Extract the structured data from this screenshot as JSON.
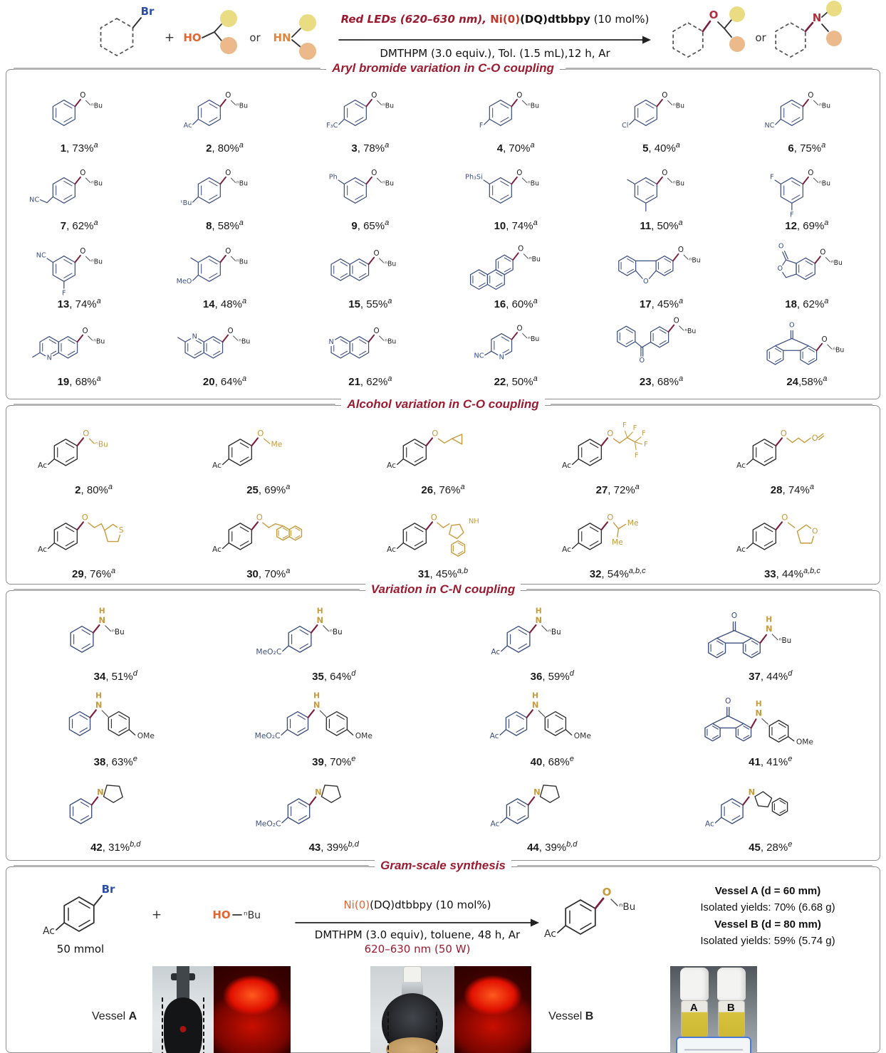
{
  "colors": {
    "blue": "#3d5080",
    "dark": "#2f2f2f",
    "maroon": "#7c1f3d",
    "gold": "#c79b3b",
    "hetero": "#2f4b8f",
    "red": "#b03040",
    "title": "#9b1b30",
    "orange": "#e2662f",
    "hnOrange": "#e0873c",
    "blob_yellow": "#e9dc82",
    "blob_orange": "#ecb98a"
  },
  "glyphs": {
    "o": "O",
    "n": "N",
    "h": "H",
    "s": "S",
    "nh": "NH",
    "nBu": "ⁿBu",
    "me": "Me",
    "f": "F",
    "ome": "OMe",
    "ac": "Ac",
    "nc": "NC",
    "br": "Br",
    "plus": "+",
    "or": "or",
    "ho": "HO",
    "hn": "HN"
  },
  "scheme": {
    "red_leds": "Red LEDs (620–630 nm), ",
    "ni": "Ni(0)",
    "dq": "(DQ)dtbbpy",
    "molpct": " (10 mol%)",
    "line2": "DMTHPM (3.0 equiv.), Tol. (1.5 mL),12 h, Ar"
  },
  "sections": [
    {
      "title": "Aryl bromide variation in C-O coupling",
      "compounds": [
        {
          "id": "1",
          "yield": "73%",
          "sup": "a",
          "type": "aryl",
          "subs": []
        },
        {
          "id": "2",
          "yield": "80%",
          "sup": "a",
          "type": "aryl",
          "subs": [
            {
              "t": "Ac",
              "pos": "bl"
            }
          ]
        },
        {
          "id": "3",
          "yield": "78%",
          "sup": "a",
          "type": "aryl",
          "subs": [
            {
              "t": "F₃C",
              "pos": "bl"
            }
          ]
        },
        {
          "id": "4",
          "yield": "70%",
          "sup": "a",
          "type": "aryl",
          "subs": [
            {
              "t": "F",
              "pos": "bl"
            }
          ]
        },
        {
          "id": "5",
          "yield": "40%",
          "sup": "a",
          "type": "aryl",
          "subs": [
            {
              "t": "Cl",
              "pos": "bl"
            }
          ]
        },
        {
          "id": "6",
          "yield": "75%",
          "sup": "a",
          "type": "aryl",
          "subs": [
            {
              "t": "NC",
              "pos": "bl"
            }
          ]
        },
        {
          "id": "7",
          "yield": "62%",
          "sup": "a",
          "type": "aryl",
          "subs": [
            {
              "t": "NC",
              "pos": "bl2"
            }
          ]
        },
        {
          "id": "8",
          "yield": "58%",
          "sup": "a",
          "type": "aryl",
          "subs": [
            {
              "t": "ᵗBu",
              "pos": "bl"
            }
          ]
        },
        {
          "id": "9",
          "yield": "65%",
          "sup": "a",
          "type": "aryl",
          "subs": [
            {
              "t": "Ph",
              "pos": "l"
            }
          ]
        },
        {
          "id": "10",
          "yield": "74%",
          "sup": "a",
          "type": "aryl",
          "subs": [
            {
              "t": "Ph₃Si",
              "pos": "l"
            }
          ]
        },
        {
          "id": "11",
          "yield": "50%",
          "sup": "a",
          "type": "aryl",
          "subs": [
            {
              "t": "",
              "pos": "me-l"
            },
            {
              "t": "",
              "pos": "me-b"
            }
          ]
        },
        {
          "id": "12",
          "yield": "69%",
          "sup": "a",
          "type": "aryl",
          "subs": [
            {
              "t": "F",
              "pos": "l"
            },
            {
              "t": "F",
              "pos": "b"
            }
          ]
        },
        {
          "id": "13",
          "yield": "74%",
          "sup": "a",
          "type": "aryl",
          "subs": [
            {
              "t": "NC",
              "pos": "l"
            },
            {
              "t": "F",
              "pos": "b"
            }
          ]
        },
        {
          "id": "14",
          "yield": "48%",
          "sup": "a",
          "type": "aryl",
          "subs": [
            {
              "t": "",
              "pos": "me-l"
            },
            {
              "t": "MeO",
              "pos": "bl"
            }
          ]
        },
        {
          "id": "15",
          "yield": "55%",
          "sup": "a",
          "type": "naph",
          "subs": []
        },
        {
          "id": "16",
          "yield": "60%",
          "sup": "a",
          "type": "phen",
          "subs": []
        },
        {
          "id": "17",
          "yield": "45%",
          "sup": "a",
          "type": "dbf",
          "subs": []
        },
        {
          "id": "18",
          "yield": "62%",
          "sup": "a",
          "type": "lactone",
          "subs": []
        },
        {
          "id": "19",
          "yield": "68%",
          "sup": "a",
          "type": "quin6",
          "subs": []
        },
        {
          "id": "20",
          "yield": "64%",
          "sup": "a",
          "type": "quin7",
          "subs": []
        },
        {
          "id": "21",
          "yield": "62%",
          "sup": "a",
          "type": "isoquin",
          "subs": []
        },
        {
          "id": "22",
          "yield": "50%",
          "sup": "a",
          "type": "pyrCN",
          "subs": []
        },
        {
          "id": "23",
          "yield": "68%",
          "sup": "a",
          "type": "bzp",
          "subs": []
        },
        {
          "id": "24",
          "yield": "58%",
          "sup": "a",
          "type": "fluorenone",
          "subs": [],
          "sep": ","
        }
      ]
    },
    {
      "title": "Alcohol variation in C-O coupling",
      "compounds": [
        {
          "id": "2",
          "yield": "80%",
          "sup": "a",
          "chain": "OnBu"
        },
        {
          "id": "25",
          "yield": "69%",
          "sup": "a",
          "chain": "OMe"
        },
        {
          "id": "26",
          "yield": "76%",
          "sup": "a",
          "chain": "cPr"
        },
        {
          "id": "27",
          "yield": "72%",
          "sup": "a",
          "chain": "C2F5"
        },
        {
          "id": "28",
          "yield": "74%",
          "sup": "a",
          "chain": "butenyl"
        },
        {
          "id": "29",
          "yield": "76%",
          "sup": "a",
          "chain": "thienyl"
        },
        {
          "id": "30",
          "yield": "70%",
          "sup": "a",
          "chain": "naphEt"
        },
        {
          "id": "31",
          "yield": "45%",
          "sup": "a,b",
          "chain": "indolyl"
        },
        {
          "id": "32",
          "yield": "54%",
          "sup": "a,b,c",
          "chain": "iPr"
        },
        {
          "id": "33",
          "yield": "44%",
          "sup": "a,b,c",
          "chain": "thf"
        }
      ]
    },
    {
      "title": "Variation in C-N coupling",
      "compounds": [
        {
          "id": "34",
          "yield": "51%",
          "sup": "d",
          "type": "nhbu",
          "sub": ""
        },
        {
          "id": "35",
          "yield": "64%",
          "sup": "d",
          "type": "nhbu",
          "sub": "MeO₂C"
        },
        {
          "id": "36",
          "yield": "59%",
          "sup": "d",
          "type": "nhbu",
          "sub": "Ac"
        },
        {
          "id": "37",
          "yield": "44%",
          "sup": "d",
          "type": "flu-nhbu",
          "sub": ""
        },
        {
          "id": "38",
          "yield": "63%",
          "sup": "e",
          "type": "nhar",
          "sub": ""
        },
        {
          "id": "39",
          "yield": "70%",
          "sup": "e",
          "type": "nhar",
          "sub": "MeO₂C"
        },
        {
          "id": "40",
          "yield": "68%",
          "sup": "e",
          "type": "nhar",
          "sub": "Ac"
        },
        {
          "id": "41",
          "yield": "41%",
          "sup": "e",
          "type": "flu-nhar",
          "sub": ""
        },
        {
          "id": "42",
          "yield": "31%",
          "sup": "b,d",
          "type": "pyrrolidine",
          "sub": ""
        },
        {
          "id": "43",
          "yield": "39%",
          "sup": "b,d",
          "type": "pyrrolidine",
          "sub": "MeO₂C"
        },
        {
          "id": "44",
          "yield": "39%",
          "sup": "b,d",
          "type": "pyrrolidine",
          "sub": "Ac"
        },
        {
          "id": "45",
          "yield": "28%",
          "sup": "e",
          "type": "nindole",
          "sub": "Ac"
        }
      ]
    }
  ],
  "gram": {
    "title": "Gram-scale synthesis",
    "amount": "50 mmol",
    "cond_ni": "Ni(0)",
    "cond_rest": "(DQ)dtbbpy (10 mol%)",
    "cond2": "DMTHPM (3.0 equiv), toluene, 48 h, Ar",
    "cond3": "620–630 nm (50 W)",
    "vessel_a_title": "Vessel A (d = 60 mm)",
    "vessel_a_yield": "Isolated yields: 70% (6.68 g)",
    "vessel_b_title": "Vessel B (d = 80 mm)",
    "vessel_b_yield": "Isolated yields: 59% (5.74 g)",
    "vessel_word": "Vessel",
    "vessel_a_letter": "A",
    "vessel_b_letter": "B",
    "d_label": "d"
  }
}
